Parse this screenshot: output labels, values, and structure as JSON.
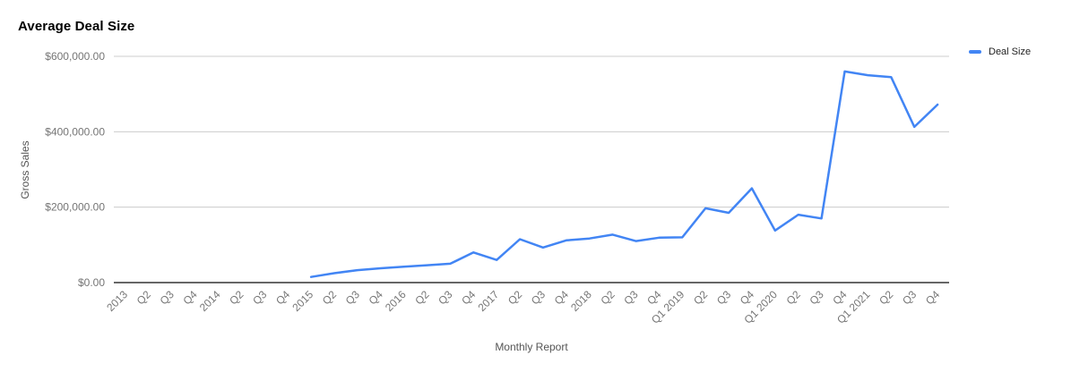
{
  "title": "Average Deal Size",
  "legend": {
    "items": [
      {
        "label": "Deal Size",
        "color": "#4285f4"
      }
    ]
  },
  "colors": {
    "background": "#ffffff",
    "title_text": "#000000",
    "line": "#4285f4",
    "grid": "#cccccc",
    "axis_line": "#333333",
    "tick_text": "#757575",
    "axis_title_text": "#555555"
  },
  "chart_data": {
    "type": "line",
    "title": "Average Deal Size",
    "xlabel": "Monthly Report",
    "ylabel": "Gross Sales",
    "categories": [
      "2013",
      "Q2",
      "Q3",
      "Q4",
      "2014",
      "Q2",
      "Q3",
      "Q4",
      "2015",
      "Q2",
      "Q3",
      "Q4",
      "2016",
      "Q2",
      "Q3",
      "Q4",
      "2017",
      "Q2",
      "Q3",
      "Q4",
      "2018",
      "Q2",
      "Q3",
      "Q4",
      "Q1 2019",
      "Q2",
      "Q3",
      "Q4",
      "Q1 2020",
      "Q2",
      "Q3",
      "Q4",
      "Q1 2021",
      "Q2",
      "Q3",
      "Q4"
    ],
    "series": [
      {
        "name": "Deal Size",
        "color": "#4285f4",
        "values": [
          null,
          null,
          null,
          null,
          null,
          null,
          null,
          null,
          15000,
          25000,
          33000,
          38000,
          42000,
          46000,
          50000,
          80000,
          60000,
          115000,
          93000,
          112000,
          117000,
          127000,
          110000,
          119000,
          120000,
          197000,
          185000,
          250000,
          138000,
          180000,
          170000,
          560000,
          550000,
          545000,
          413000,
          472000
        ]
      }
    ],
    "y_ticks": [
      {
        "value": 0,
        "label": "$0.00"
      },
      {
        "value": 200000,
        "label": "$200,000.00"
      },
      {
        "value": 400000,
        "label": "$400,000.00"
      },
      {
        "value": 600000,
        "label": "$600,000.00"
      }
    ],
    "ylim": [
      0,
      600000
    ],
    "grid": true,
    "legend_position": "top-right"
  }
}
